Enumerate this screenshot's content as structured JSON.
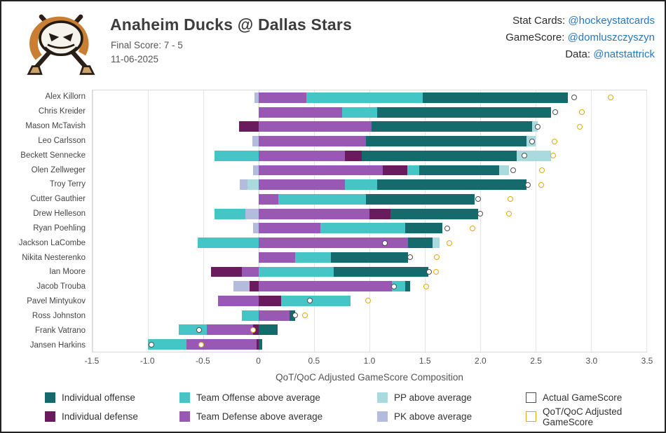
{
  "header": {
    "title": "Anaheim Ducks @ Dallas Stars",
    "final_score": "Final Score: 7 - 5",
    "date": "11-06-2025",
    "credits": [
      {
        "label": "Stat Cards:",
        "handle": "@hockeystatcards"
      },
      {
        "label": "GameScore:",
        "handle": "@domluszczyszyn"
      },
      {
        "label": "Data:",
        "handle": "@natstattrick"
      }
    ],
    "logo": "anaheim-ducks-mask-logo"
  },
  "chart_data": {
    "type": "bar",
    "orientation": "horizontal",
    "stacked": true,
    "grid": true,
    "xlabel": "QoT/QoC Adjusted GameScore Composition",
    "xlim": [
      -1.5,
      3.5
    ],
    "xticks": [
      -1.5,
      -1.0,
      -0.5,
      0,
      0.5,
      1.0,
      1.5,
      2.0,
      2.5,
      3.0,
      3.5
    ],
    "xtick_labels": [
      "-1.5",
      "-1.0",
      "-0.5",
      "0",
      "0.5",
      "1.0",
      "1.5",
      "2.0",
      "2.5",
      "3.0",
      "3.5"
    ],
    "colors": {
      "individual_offense": "#156A6C",
      "individual_defense": "#6A1B5D",
      "team_offense": "#46C5C6",
      "team_defense": "#9A58B5",
      "pp": "#A9DBDE",
      "pk": "#B4BCDE",
      "actual_marker_border": "#4D4D4D",
      "adjusted_marker_border": "#E2A713",
      "marker_fill": "#FFFFFF",
      "link": "#2778BE",
      "grid": "#E4E4E4"
    },
    "players": [
      {
        "name": "Alex Killorn",
        "segments": [
          {
            "k": "pk",
            "v": -0.04
          },
          {
            "k": "team_defense",
            "v": 0.43
          },
          {
            "k": "team_offense",
            "v": 1.05
          },
          {
            "k": "individual_offense",
            "v": 1.31
          }
        ],
        "actual": 2.85,
        "adjusted": 3.18
      },
      {
        "name": "Chris Kreider",
        "segments": [
          {
            "k": "team_defense",
            "v": 0.75
          },
          {
            "k": "team_offense",
            "v": 0.32
          },
          {
            "k": "individual_offense",
            "v": 1.57
          }
        ],
        "actual": 2.68,
        "adjusted": 2.92
      },
      {
        "name": "Mason McTavish",
        "segments": [
          {
            "k": "individual_defense",
            "v": -0.18
          },
          {
            "k": "team_defense",
            "v": 1.02
          },
          {
            "k": "individual_offense",
            "v": 1.45
          },
          {
            "k": "pp",
            "v": 0.05
          }
        ],
        "actual": 2.52,
        "adjusted": 2.9
      },
      {
        "name": "Leo Carlsson",
        "segments": [
          {
            "k": "pk",
            "v": -0.06
          },
          {
            "k": "team_defense",
            "v": 0.97
          },
          {
            "k": "individual_offense",
            "v": 1.45
          },
          {
            "k": "pp",
            "v": 0.08
          }
        ],
        "actual": 2.47,
        "adjusted": 2.67
      },
      {
        "name": "Beckett Sennecke",
        "segments": [
          {
            "k": "team_offense",
            "v": -0.4
          },
          {
            "k": "team_defense",
            "v": 0.78
          },
          {
            "k": "individual_defense",
            "v": 0.15
          },
          {
            "k": "individual_offense",
            "v": 1.4
          },
          {
            "k": "pp",
            "v": 0.31
          }
        ],
        "actual": 2.4,
        "adjusted": 2.66
      },
      {
        "name": "Olen Zellweger",
        "segments": [
          {
            "k": "pk",
            "v": -0.05
          },
          {
            "k": "team_defense",
            "v": 1.12
          },
          {
            "k": "individual_defense",
            "v": 0.22
          },
          {
            "k": "team_offense",
            "v": 0.11
          },
          {
            "k": "individual_offense",
            "v": 0.72
          },
          {
            "k": "pp",
            "v": 0.09
          }
        ],
        "actual": 2.3,
        "adjusted": 2.56
      },
      {
        "name": "Troy Terry",
        "segments": [
          {
            "k": "pp",
            "v": -0.1
          },
          {
            "k": "pk",
            "v": -0.07
          },
          {
            "k": "team_defense",
            "v": 0.78
          },
          {
            "k": "team_offense",
            "v": 0.29
          },
          {
            "k": "individual_offense",
            "v": 1.35
          }
        ],
        "actual": 2.43,
        "adjusted": 2.55
      },
      {
        "name": "Cutter Gauthier",
        "segments": [
          {
            "k": "team_defense",
            "v": 0.18
          },
          {
            "k": "team_offense",
            "v": 0.79
          },
          {
            "k": "individual_offense",
            "v": 0.98
          }
        ],
        "actual": 1.98,
        "adjusted": 2.27
      },
      {
        "name": "Drew Helleson",
        "segments": [
          {
            "k": "pk",
            "v": -0.12
          },
          {
            "k": "team_offense",
            "v": -0.28
          },
          {
            "k": "team_defense",
            "v": 1.0
          },
          {
            "k": "individual_defense",
            "v": 0.19
          },
          {
            "k": "individual_offense",
            "v": 0.79
          }
        ],
        "actual": 2.0,
        "adjusted": 2.26
      },
      {
        "name": "Ryan Poehling",
        "segments": [
          {
            "k": "pk",
            "v": -0.05
          },
          {
            "k": "team_defense",
            "v": 0.56
          },
          {
            "k": "team_offense",
            "v": 0.76
          },
          {
            "k": "individual_offense",
            "v": 0.34
          }
        ],
        "actual": 1.7,
        "adjusted": 1.93
      },
      {
        "name": "Jackson LaCombe",
        "segments": [
          {
            "k": "team_offense",
            "v": -0.55
          },
          {
            "k": "team_defense",
            "v": 1.35
          },
          {
            "k": "individual_offense",
            "v": 0.22
          },
          {
            "k": "pp",
            "v": 0.06
          }
        ],
        "actual": 1.14,
        "adjusted": 1.72
      },
      {
        "name": "Nikita Nesterenko",
        "segments": [
          {
            "k": "team_defense",
            "v": 0.33
          },
          {
            "k": "team_offense",
            "v": 0.32
          },
          {
            "k": "individual_offense",
            "v": 0.7
          }
        ],
        "actual": 1.37,
        "adjusted": 1.61
      },
      {
        "name": "Ian Moore",
        "segments": [
          {
            "k": "team_defense",
            "v": -0.15
          },
          {
            "k": "individual_defense",
            "v": -0.28
          },
          {
            "k": "team_offense",
            "v": 0.68
          },
          {
            "k": "individual_offense",
            "v": 0.85
          }
        ],
        "actual": 1.54,
        "adjusted": 1.6
      },
      {
        "name": "Jacob Trouba",
        "segments": [
          {
            "k": "individual_defense",
            "v": -0.08
          },
          {
            "k": "pk",
            "v": -0.15
          },
          {
            "k": "team_defense",
            "v": 1.2
          },
          {
            "k": "team_offense",
            "v": 0.12
          },
          {
            "k": "individual_offense",
            "v": 0.05
          }
        ],
        "actual": 1.22,
        "adjusted": 1.51
      },
      {
        "name": "Pavel Mintyukov",
        "segments": [
          {
            "k": "team_defense",
            "v": -0.37
          },
          {
            "k": "individual_defense",
            "v": 0.2
          },
          {
            "k": "team_offense",
            "v": 0.63
          }
        ],
        "actual": 0.46,
        "adjusted": 0.99
      },
      {
        "name": "Ross Johnston",
        "segments": [
          {
            "k": "team_offense",
            "v": -0.15
          },
          {
            "k": "team_defense",
            "v": 0.28
          },
          {
            "k": "individual_offense",
            "v": 0.05
          }
        ],
        "actual": 0.33,
        "adjusted": 0.42
      },
      {
        "name": "Frank Vatrano",
        "segments": [
          {
            "k": "individual_defense",
            "v": -0.05
          },
          {
            "k": "team_defense",
            "v": -0.42
          },
          {
            "k": "team_offense",
            "v": -0.25
          },
          {
            "k": "individual_offense",
            "v": 0.17
          }
        ],
        "actual": -0.54,
        "adjusted": -0.05
      },
      {
        "name": "Jansen Harkins",
        "segments": [
          {
            "k": "individual_defense",
            "v": -0.02
          },
          {
            "k": "team_defense",
            "v": -0.63
          },
          {
            "k": "team_offense",
            "v": -0.35
          },
          {
            "k": "individual_offense",
            "v": 0.03
          }
        ],
        "actual": -0.97,
        "adjusted": -0.52
      }
    ]
  },
  "legend": {
    "items": [
      {
        "label": "Individual offense",
        "swatch": "individual_offense"
      },
      {
        "label": "Team Offense above average",
        "swatch": "team_offense"
      },
      {
        "label": "PP above average",
        "swatch": "pp"
      },
      {
        "label": "Actual GameScore",
        "swatch": "actual"
      },
      {
        "label": "Individual defense",
        "swatch": "individual_defense"
      },
      {
        "label": "Team Defense above average",
        "swatch": "team_defense"
      },
      {
        "label": "PK above average",
        "swatch": "pk"
      },
      {
        "label": "QoT/QoC Adjusted GameScore",
        "swatch": "adjusted"
      }
    ]
  }
}
